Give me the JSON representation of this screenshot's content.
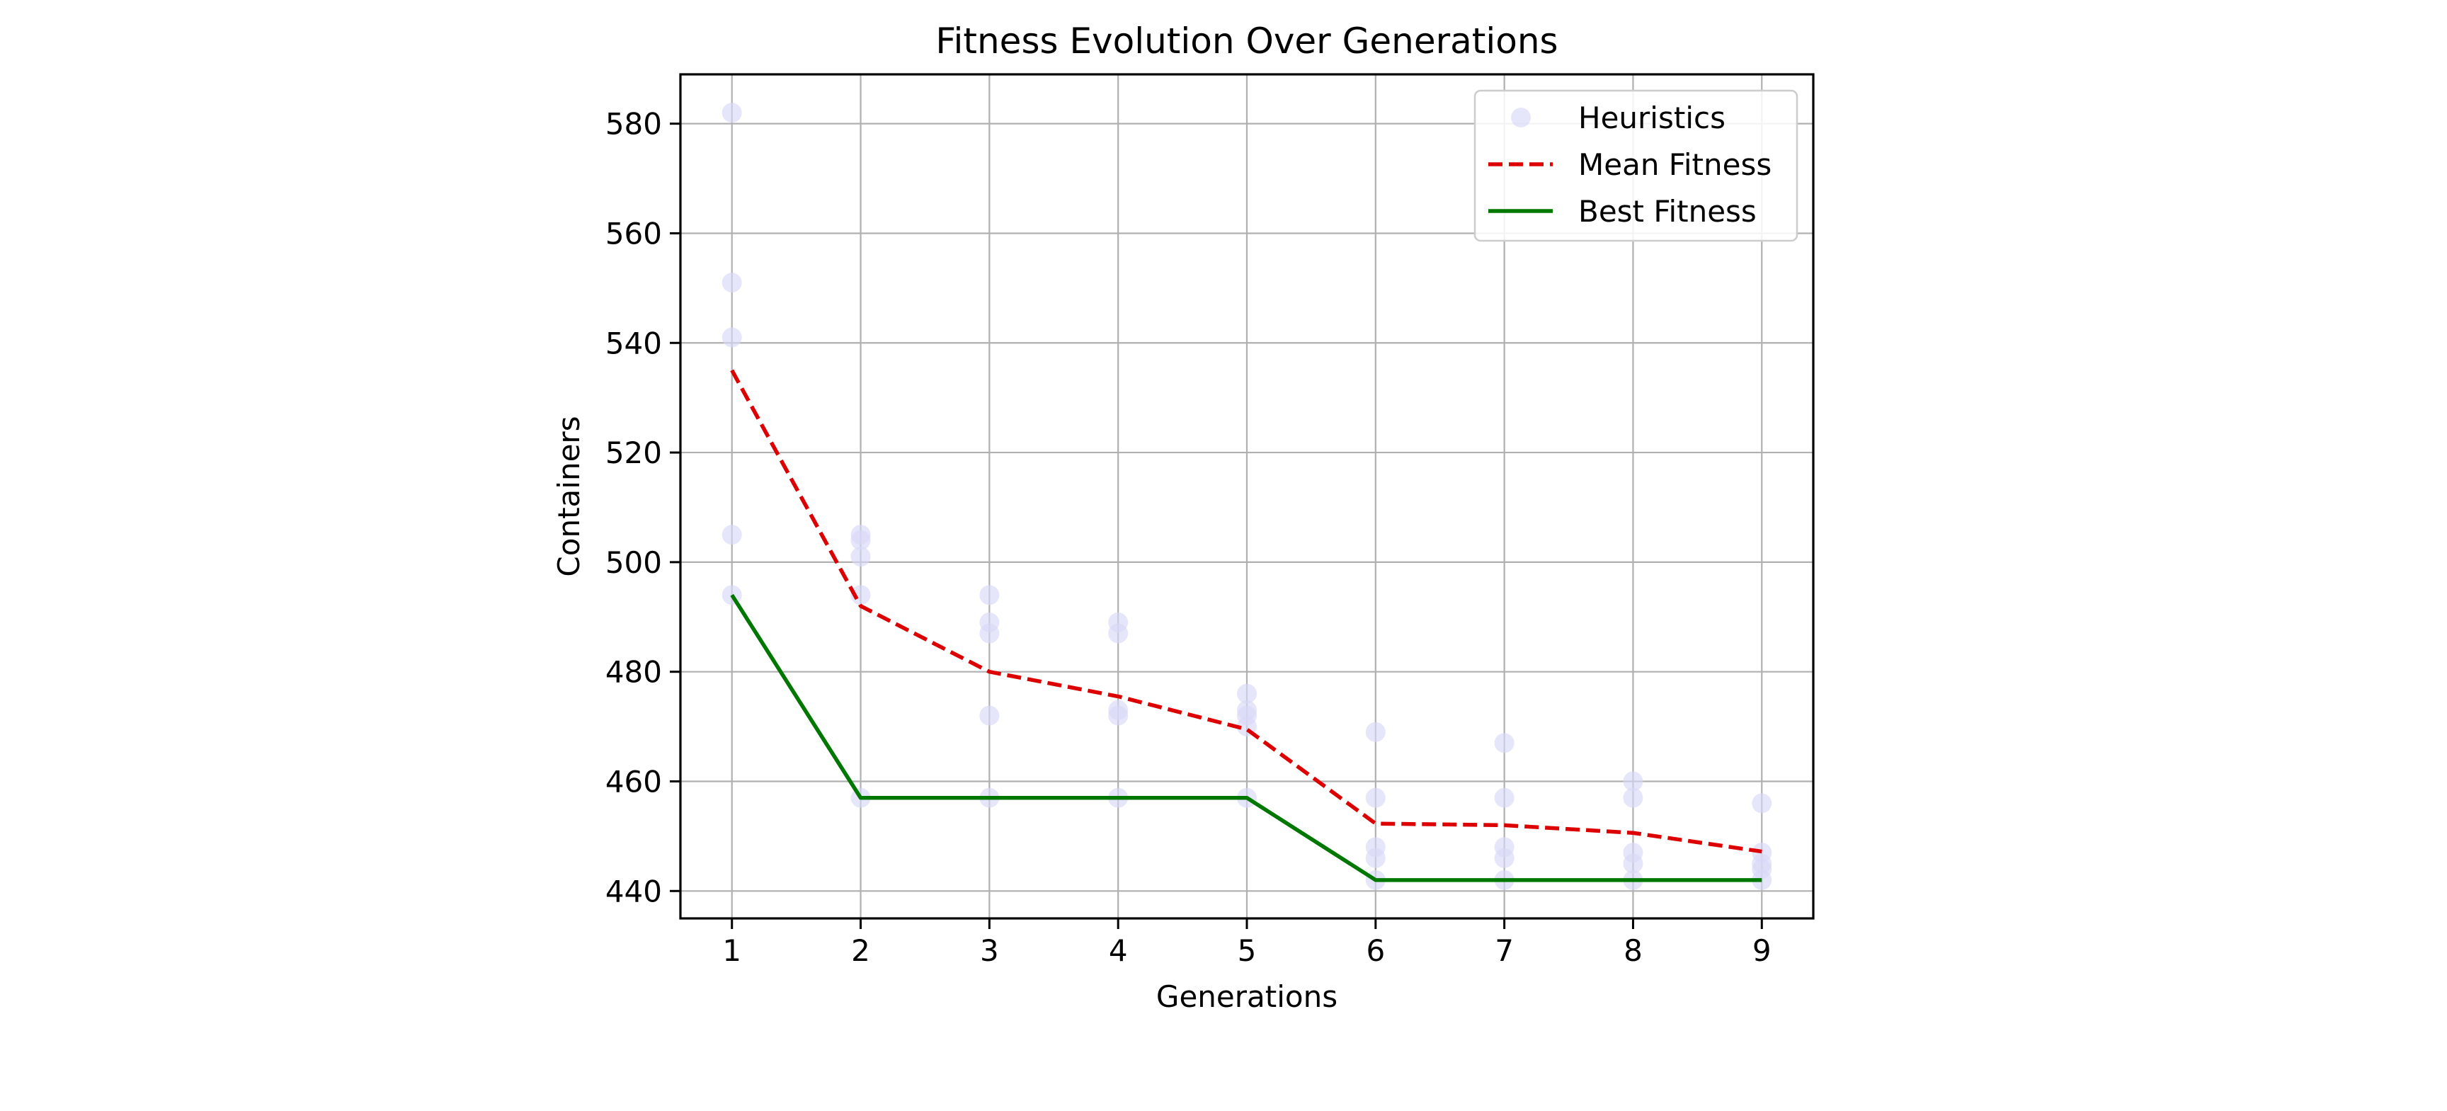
{
  "chart_data": {
    "type": "line",
    "title": "Fitness Evolution Over Generations",
    "xlabel": "Generations",
    "ylabel": "Containers",
    "xlim": [
      0.6,
      9.4
    ],
    "ylim": [
      435,
      589
    ],
    "x_ticks": [
      1,
      2,
      3,
      4,
      5,
      6,
      7,
      8,
      9
    ],
    "y_ticks": [
      440,
      460,
      480,
      500,
      520,
      540,
      560,
      580
    ],
    "grid": true,
    "legend_position": "top-right",
    "series": [
      {
        "name": "Heuristics",
        "kind": "scatter",
        "color": "#d8d8f8",
        "points": [
          [
            1,
            582
          ],
          [
            1,
            551
          ],
          [
            1,
            541
          ],
          [
            1,
            505
          ],
          [
            1,
            494
          ],
          [
            2,
            505
          ],
          [
            2,
            504
          ],
          [
            2,
            501
          ],
          [
            2,
            494
          ],
          [
            2,
            457
          ],
          [
            3,
            494
          ],
          [
            3,
            489
          ],
          [
            3,
            487
          ],
          [
            3,
            472
          ],
          [
            3,
            457
          ],
          [
            4,
            489
          ],
          [
            4,
            487
          ],
          [
            4,
            473
          ],
          [
            4,
            472
          ],
          [
            4,
            457
          ],
          [
            5,
            476
          ],
          [
            5,
            473
          ],
          [
            5,
            472
          ],
          [
            5,
            470
          ],
          [
            5,
            457
          ],
          [
            6,
            469
          ],
          [
            6,
            457
          ],
          [
            6,
            448
          ],
          [
            6,
            446
          ],
          [
            6,
            442
          ],
          [
            7,
            467
          ],
          [
            7,
            457
          ],
          [
            7,
            448
          ],
          [
            7,
            446
          ],
          [
            7,
            442
          ],
          [
            8,
            460
          ],
          [
            8,
            457
          ],
          [
            8,
            447
          ],
          [
            8,
            445
          ],
          [
            8,
            442
          ],
          [
            9,
            456
          ],
          [
            9,
            447
          ],
          [
            9,
            445
          ],
          [
            9,
            444
          ],
          [
            9,
            442
          ]
        ]
      },
      {
        "name": "Mean Fitness",
        "kind": "line",
        "dash": "dashed",
        "color": "#dd0000",
        "x": [
          1,
          2,
          3,
          4,
          5,
          6,
          7,
          8,
          9
        ],
        "values": [
          535,
          492,
          480,
          475.5,
          469.5,
          452.3,
          452,
          450.6,
          447.2
        ]
      },
      {
        "name": "Best Fitness",
        "kind": "line",
        "dash": "solid",
        "color": "#007700",
        "x": [
          1,
          2,
          3,
          4,
          5,
          6,
          7,
          8,
          9
        ],
        "values": [
          494,
          457,
          457,
          457,
          457,
          442,
          442,
          442,
          442
        ]
      }
    ]
  },
  "colors": {
    "grid": "#b0b0b0",
    "axes": "#000000",
    "legend_border": "#cccccc"
  }
}
